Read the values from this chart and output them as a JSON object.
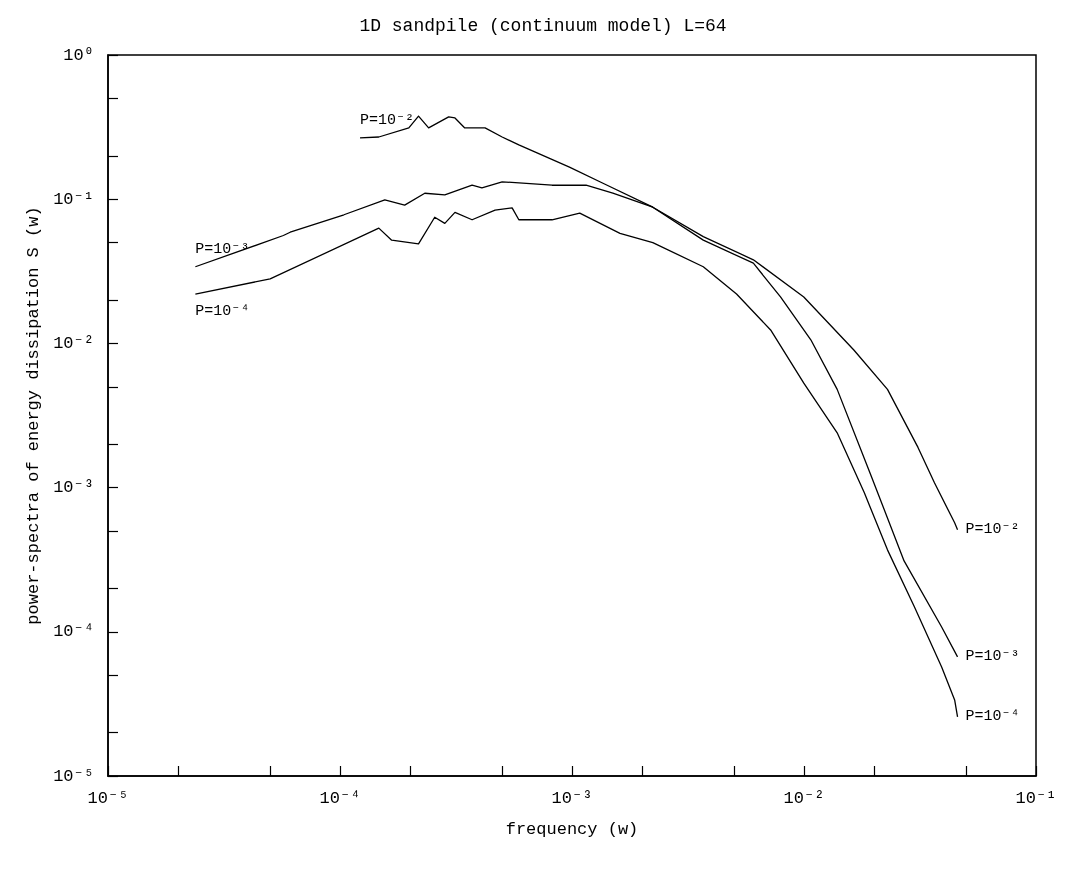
{
  "chart_data": {
    "type": "line",
    "title": "1D sandpile (continuum model) L=64",
    "xlabel": "frequency (w)",
    "ylabel": "power-spectra of energy dissipation S (w)",
    "log": "xy",
    "grid": false,
    "legend": false,
    "xlim": [
      1e-05,
      0.1
    ],
    "ylim": [
      1e-05,
      1
    ],
    "xticks": [
      {
        "value": 1e-05,
        "label": "10⁻⁵"
      },
      {
        "value": 2e-05,
        "label": null
      },
      {
        "value": 5e-05,
        "label": null
      },
      {
        "value": 0.0001,
        "label": "10⁻⁴"
      },
      {
        "value": 0.0002,
        "label": null
      },
      {
        "value": 0.0005,
        "label": null
      },
      {
        "value": 0.001,
        "label": "10⁻³"
      },
      {
        "value": 0.002,
        "label": null
      },
      {
        "value": 0.005,
        "label": null
      },
      {
        "value": 0.01,
        "label": "10⁻²"
      },
      {
        "value": 0.02,
        "label": null
      },
      {
        "value": 0.05,
        "label": null
      },
      {
        "value": 0.1,
        "label": "10⁻¹"
      }
    ],
    "yticks": [
      {
        "value": 1e-05,
        "label": "10⁻⁵"
      },
      {
        "value": 2e-05,
        "label": null
      },
      {
        "value": 5e-05,
        "label": null
      },
      {
        "value": 0.0001,
        "label": "10⁻⁴"
      },
      {
        "value": 0.0002,
        "label": null
      },
      {
        "value": 0.0005,
        "label": null
      },
      {
        "value": 0.001,
        "label": "10⁻³"
      },
      {
        "value": 0.002,
        "label": null
      },
      {
        "value": 0.005,
        "label": null
      },
      {
        "value": 0.01,
        "label": "10⁻²"
      },
      {
        "value": 0.02,
        "label": null
      },
      {
        "value": 0.05,
        "label": null
      },
      {
        "value": 0.1,
        "label": "10⁻¹"
      },
      {
        "value": 0.2,
        "label": null
      },
      {
        "value": 0.5,
        "label": null
      },
      {
        "value": 1,
        "label": "10⁰"
      }
    ],
    "series": [
      {
        "name": "P=10⁻²",
        "color": "#000000",
        "x": [
          0.000122,
          0.000147,
          0.000198,
          0.000218,
          0.000241,
          0.000294,
          0.000313,
          0.000345,
          0.000422,
          0.0005,
          0.00059,
          0.000695,
          0.000975,
          0.00136,
          0.00223,
          0.00368,
          0.00605,
          0.00998,
          0.0164,
          0.0229,
          0.031,
          0.0365,
          0.0446,
          0.0459
        ],
        "values": [
          0.266,
          0.27,
          0.312,
          0.377,
          0.312,
          0.372,
          0.366,
          0.312,
          0.312,
          0.27,
          0.238,
          0.212,
          0.167,
          0.129,
          0.088,
          0.055,
          0.038,
          0.021,
          0.009,
          0.0048,
          0.0019,
          0.00108,
          0.00057,
          0.00051
        ]
      },
      {
        "name": "P=10⁻³",
        "color": "#000000",
        "x": [
          2.38e-05,
          5.7e-05,
          6.1e-05,
          0.000104,
          0.000156,
          0.00019,
          0.000232,
          0.000283,
          0.000371,
          0.000409,
          0.0005,
          0.00082,
          0.00115,
          0.0015,
          0.00223,
          0.00368,
          0.00605,
          0.00792,
          0.0107,
          0.0139,
          0.0195,
          0.027,
          0.0392,
          0.0459
        ],
        "values": [
          0.034,
          0.056,
          0.059,
          0.078,
          0.099,
          0.091,
          0.11,
          0.107,
          0.125,
          0.12,
          0.132,
          0.125,
          0.125,
          0.11,
          0.088,
          0.052,
          0.036,
          0.021,
          0.0106,
          0.0048,
          0.0012,
          0.00031,
          0.000108,
          6.7e-05
        ]
      },
      {
        "name": "P=10⁻⁴",
        "color": "#000000",
        "x": [
          2.38e-05,
          5e-05,
          0.000147,
          0.000167,
          0.000218,
          0.000256,
          0.000283,
          0.000313,
          0.000371,
          0.000466,
          0.000552,
          0.00059,
          0.00082,
          0.00108,
          0.00161,
          0.00223,
          0.00368,
          0.00512,
          0.00718,
          0.00998,
          0.0139,
          0.0182,
          0.0229,
          0.0299,
          0.0392,
          0.0446,
          0.0459
        ],
        "values": [
          0.022,
          0.028,
          0.063,
          0.052,
          0.049,
          0.075,
          0.068,
          0.081,
          0.072,
          0.084,
          0.087,
          0.072,
          0.072,
          0.08,
          0.058,
          0.05,
          0.034,
          0.022,
          0.0124,
          0.0053,
          0.0024,
          0.00092,
          0.00037,
          0.000149,
          5.7e-05,
          3.37e-05,
          2.57e-05
        ]
      }
    ]
  }
}
